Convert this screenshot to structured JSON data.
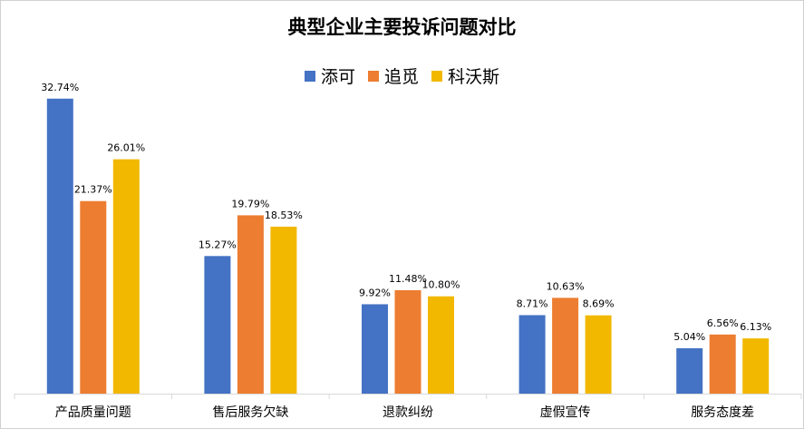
{
  "chart_data": {
    "type": "bar",
    "title": "典型企业主要投诉问题对比",
    "categories": [
      "产品质量问题",
      "售后服务欠缺",
      "退款纠纷",
      "虚假宣传",
      "服务态度差"
    ],
    "series": [
      {
        "name": "添可",
        "color": "#4472C4",
        "values": [
          32.74,
          15.27,
          9.92,
          8.71,
          5.04
        ],
        "labels": [
          "32.74%",
          "15.27%",
          "9.92%",
          "8.71%",
          "5.04%"
        ]
      },
      {
        "name": "追觅",
        "color": "#ED7D31",
        "values": [
          21.37,
          19.79,
          11.48,
          10.63,
          6.56
        ],
        "labels": [
          "21.37%",
          "19.79%",
          "11.48%",
          "10.63%",
          "6.56%"
        ]
      },
      {
        "name": "科沃斯",
        "color": "#F2B800",
        "values": [
          26.01,
          18.53,
          10.8,
          8.69,
          6.13
        ],
        "labels": [
          "26.01%",
          "18.53%",
          "10.80%",
          "8.69%",
          "6.13%"
        ]
      }
    ],
    "ylim": [
      0,
      35
    ],
    "grid": false,
    "legend_position": "top"
  }
}
